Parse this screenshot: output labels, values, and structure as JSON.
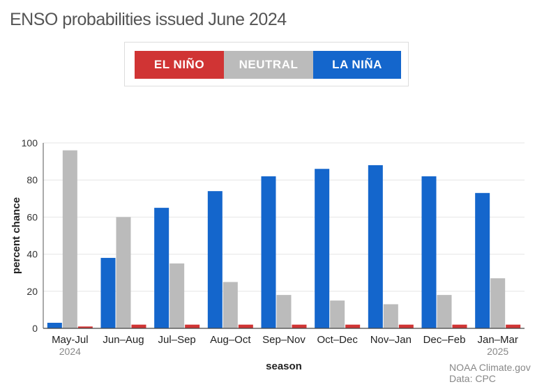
{
  "chart_data": {
    "type": "bar",
    "title": "ENSO probabilities issued June 2024",
    "xlabel": "season",
    "ylabel": "percent chance",
    "ylim": [
      0,
      100
    ],
    "yticks": [
      0,
      20,
      40,
      60,
      80,
      100
    ],
    "categories": [
      "May-Jul",
      "Jun–Aug",
      "Jul–Sep",
      "Aug–Oct",
      "Sep–Nov",
      "Oct–Dec",
      "Nov–Jan",
      "Dec–Feb",
      "Jan–Mar"
    ],
    "category_sublabels": [
      "2024",
      "",
      "",
      "",
      "",
      "",
      "",
      "",
      "2025"
    ],
    "series": [
      {
        "name": "LA NIÑA",
        "color": "#1466cc",
        "values": [
          3,
          38,
          65,
          74,
          82,
          86,
          88,
          82,
          73
        ]
      },
      {
        "name": "NEUTRAL",
        "color": "#bbbbbb",
        "values": [
          96,
          60,
          35,
          25,
          18,
          15,
          13,
          18,
          27
        ]
      },
      {
        "name": "EL NIÑO",
        "color": "#d03434",
        "values": [
          1,
          2,
          2,
          2,
          2,
          2,
          2,
          2,
          2
        ]
      }
    ],
    "legend": {
      "position": "top",
      "items": [
        {
          "label": "EL NIÑO",
          "color": "#d03434"
        },
        {
          "label": "NEUTRAL",
          "color": "#bbbbbb"
        },
        {
          "label": "LA NIÑA",
          "color": "#1466cc"
        }
      ]
    }
  },
  "source": {
    "line1": "NOAA Climate.gov",
    "line2": "Data: CPC"
  }
}
